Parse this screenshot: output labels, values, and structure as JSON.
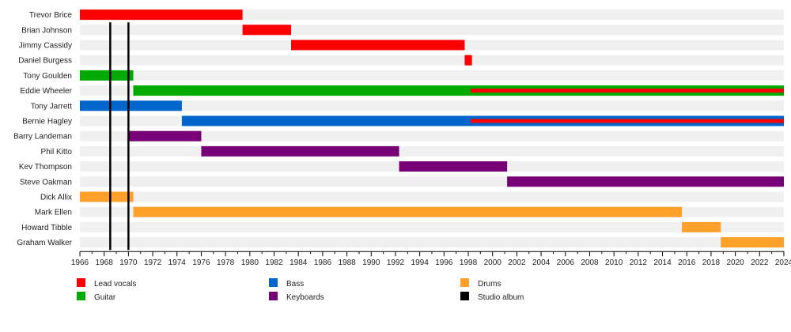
{
  "chart_data": {
    "type": "timeline",
    "title": "",
    "xlim": [
      1966,
      2024
    ],
    "x_ticks": [
      1966,
      1968,
      1970,
      1972,
      1974,
      1976,
      1978,
      1980,
      1982,
      1984,
      1986,
      1988,
      1990,
      1992,
      1994,
      1996,
      1998,
      2000,
      2002,
      2004,
      2006,
      2008,
      2010,
      2012,
      2014,
      2016,
      2018,
      2020,
      2022,
      2024
    ],
    "roles": {
      "vocals": {
        "label": "Lead vocals",
        "color": "#ff0000"
      },
      "guitar": {
        "label": "Guitar",
        "color": "#00aa00"
      },
      "bass": {
        "label": "Bass",
        "color": "#0066cc"
      },
      "keys": {
        "label": "Keyboards",
        "color": "#770077"
      },
      "drums": {
        "label": "Drums",
        "color": "#ffa02a"
      },
      "album": {
        "label": "Studio album",
        "color": "#000000"
      }
    },
    "members": [
      {
        "name": "Trevor Brice",
        "bars": [
          {
            "role": "vocals",
            "start": 1966.0,
            "end": 1979.4
          }
        ]
      },
      {
        "name": "Brian Johnson",
        "bars": [
          {
            "role": "vocals",
            "start": 1979.4,
            "end": 1983.4
          }
        ]
      },
      {
        "name": "Jimmy Cassidy",
        "bars": [
          {
            "role": "vocals",
            "start": 1983.4,
            "end": 1997.7
          }
        ]
      },
      {
        "name": "Daniel Burgess",
        "bars": [
          {
            "role": "vocals",
            "start": 1997.7,
            "end": 1998.3
          }
        ]
      },
      {
        "name": "Tony Goulden",
        "bars": [
          {
            "role": "guitar",
            "start": 1966.0,
            "end": 1970.4
          }
        ]
      },
      {
        "name": "Eddie Wheeler",
        "bars": [
          {
            "role": "guitar",
            "start": 1970.4,
            "end": 2024.0
          }
        ],
        "secondary": [
          {
            "role": "vocals",
            "start": 1998.2,
            "end": 2024.0
          }
        ]
      },
      {
        "name": "Tony Jarrett",
        "bars": [
          {
            "role": "bass",
            "start": 1966.0,
            "end": 1974.4
          }
        ]
      },
      {
        "name": "Bernie Hagley",
        "bars": [
          {
            "role": "bass",
            "start": 1974.4,
            "end": 2024.0
          }
        ],
        "secondary": [
          {
            "role": "vocals",
            "start": 1998.2,
            "end": 2024.0
          }
        ]
      },
      {
        "name": "Barry Landeman",
        "bars": [
          {
            "role": "keys",
            "start": 1970.0,
            "end": 1976.0
          }
        ]
      },
      {
        "name": "Phil Kitto",
        "bars": [
          {
            "role": "keys",
            "start": 1976.0,
            "end": 1992.3
          }
        ]
      },
      {
        "name": "Kev Thompson",
        "bars": [
          {
            "role": "keys",
            "start": 1992.3,
            "end": 2001.2
          }
        ]
      },
      {
        "name": "Steve Oakman",
        "bars": [
          {
            "role": "keys",
            "start": 2001.2,
            "end": 2024.0
          }
        ]
      },
      {
        "name": "Dick Allix",
        "bars": [
          {
            "role": "drums",
            "start": 1966.0,
            "end": 1970.4
          }
        ]
      },
      {
        "name": "Mark Ellen",
        "bars": [
          {
            "role": "drums",
            "start": 1970.4,
            "end": 2015.6
          }
        ]
      },
      {
        "name": "Howard Tibble",
        "bars": [
          {
            "role": "drums",
            "start": 2015.6,
            "end": 2018.8
          }
        ]
      },
      {
        "name": "Graham Walker",
        "bars": [
          {
            "role": "drums",
            "start": 2018.8,
            "end": 2024.0
          }
        ]
      }
    ],
    "studio_albums": [
      1968.5,
      1970.0
    ],
    "legend": [
      {
        "role": "vocals",
        "label": "Lead vocals"
      },
      {
        "role": "guitar",
        "label": "Guitar"
      },
      {
        "role": "bass",
        "label": "Bass"
      },
      {
        "role": "keys",
        "label": "Keyboards"
      },
      {
        "role": "drums",
        "label": "Drums"
      },
      {
        "role": "album",
        "label": "Studio album"
      }
    ],
    "legend_position": "bottom",
    "background_band_color": "#f0f0f0"
  }
}
